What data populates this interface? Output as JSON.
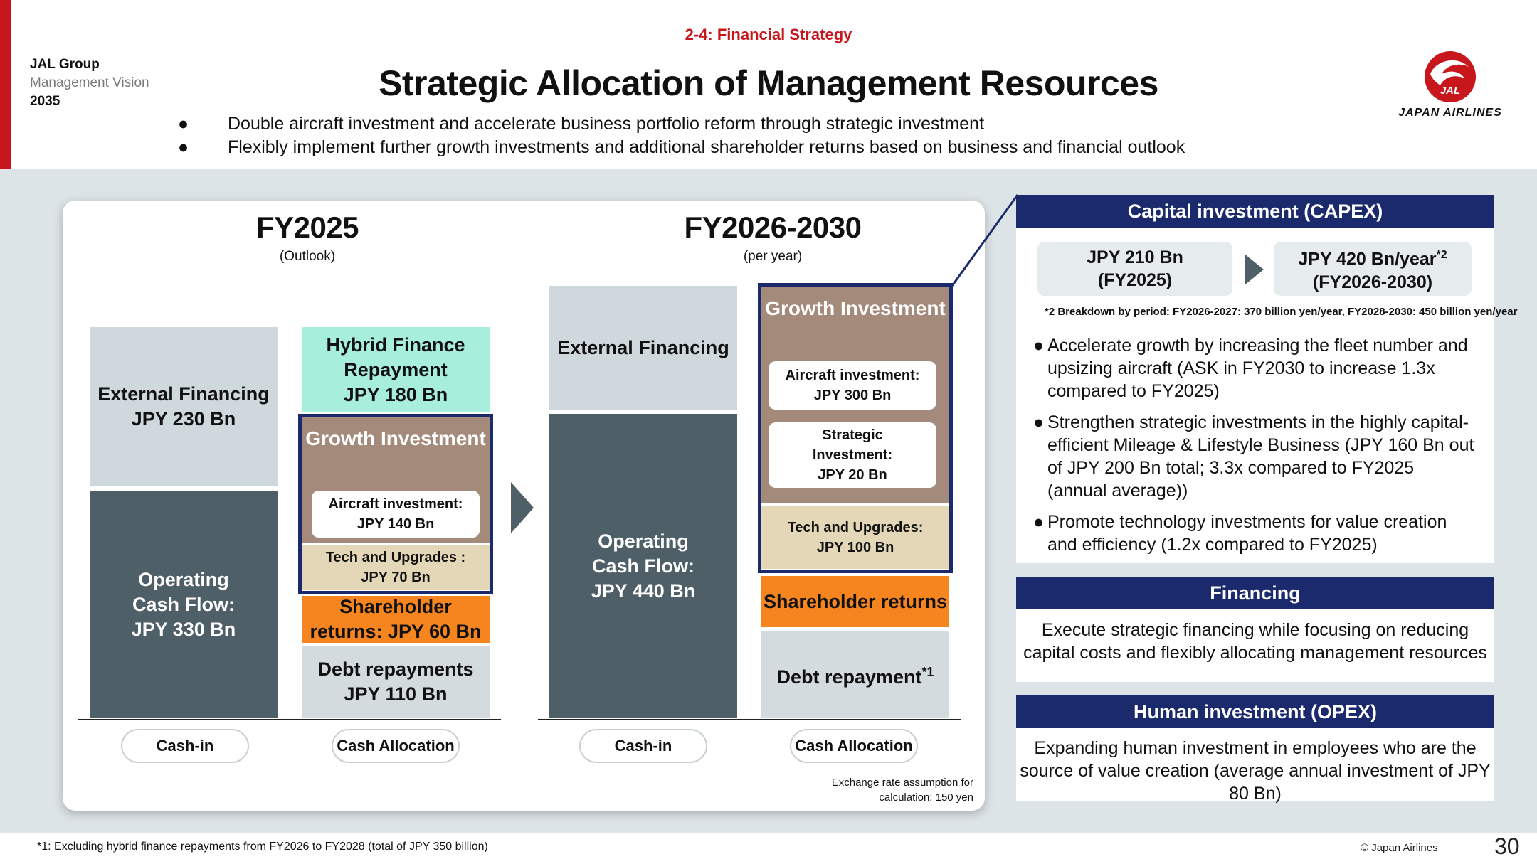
{
  "brand": {
    "line1": "JAL Group",
    "line2": "Management Vision",
    "line3": "2035"
  },
  "section_label": "2-4: Financial Strategy",
  "title": "Strategic Allocation of Management Resources",
  "bullets": [
    "Double aircraft investment and accelerate business portfolio reform through strategic investment",
    "Flexibly implement further growth investments and additional shareholder returns based on business and financial outlook"
  ],
  "logo": {
    "text": "JAPAN AIRLINES",
    "mark": "JAL"
  },
  "fy2025": {
    "title": "FY2025",
    "subtitle": "(Outlook)",
    "cash_in": {
      "external": [
        "External Financing",
        "JPY 230 Bn"
      ],
      "ocf": [
        "Operating",
        "Cash Flow:",
        "JPY 330 Bn"
      ]
    },
    "allocation": {
      "hybrid": [
        "Hybrid Finance",
        "Repayment",
        "JPY 180 Bn"
      ],
      "growth_title": "Growth Investment",
      "aircraft": [
        "Aircraft investment:",
        "JPY 140 Bn"
      ],
      "tech": [
        "Tech and Upgrades :",
        "JPY 70 Bn"
      ],
      "shareholder": [
        "Shareholder",
        "returns: JPY 60 Bn"
      ],
      "debt": [
        "Debt repayments",
        "JPY 110 Bn"
      ]
    },
    "label_in": "Cash-in",
    "label_alloc": "Cash Allocation"
  },
  "fy2630": {
    "title": "FY2026-2030",
    "subtitle": "(per year)",
    "cash_in": {
      "external": "External Financing",
      "ocf": [
        "Operating",
        "Cash Flow:",
        "JPY 440 Bn"
      ]
    },
    "allocation": {
      "growth_title": "Growth Investment",
      "aircraft": [
        "Aircraft investment:",
        "JPY 300 Bn"
      ],
      "strategic": [
        "Strategic",
        "Investment:",
        "JPY 20 Bn"
      ],
      "tech": [
        "Tech and Upgrades:",
        "JPY 100 Bn"
      ],
      "shareholder": "Shareholder returns",
      "debt": "Debt repayment",
      "debt_sup": "*1"
    },
    "label_in": "Cash-in",
    "label_alloc": "Cash Allocation"
  },
  "exchange_note": [
    "Exchange rate assumption for",
    "calculation: 150 yen"
  ],
  "capex": {
    "title": "Capital investment (CAPEX)",
    "from": [
      "JPY 210 Bn",
      "(FY2025)"
    ],
    "to": [
      "JPY 420 Bn/year",
      "(FY2026-2030)"
    ],
    "to_sup": "*2",
    "note": "*2 Breakdown by period: FY2026-2027: 370 billion yen/year, FY2028-2030: 450 billion yen/year",
    "points": [
      "Accelerate growth by increasing the fleet number and upsizing aircraft (ASK in FY2030  to increase 1.3x compared to FY2025)",
      "Strengthen strategic investments in the highly capital-efficient Mileage & Lifestyle Business (JPY 160 Bn out of JPY 200 Bn total; 3.3x compared to FY2025 (annual average))",
      "Promote technology investments for value creation and efficiency (1.2x compared to FY2025)"
    ]
  },
  "financing": {
    "title": "Financing",
    "body": "Execute strategic financing while focusing on reducing capital costs and flexibly allocating management resources"
  },
  "human": {
    "title": "Human investment (OPEX)",
    "body": "Expanding human investment in employees who are the source of value creation (average annual investment of JPY 80 Bn)"
  },
  "footnote": "*1: Excluding hybrid finance repayments from FY2026 to FY2028 (total of JPY 350 billion)",
  "copyright": "© Japan Airlines",
  "page_number": "30",
  "colors": {
    "accent_red": "#c8161d",
    "navy": "#1a2a6c",
    "orange": "#f6851f",
    "slate": "#4f5f67"
  }
}
